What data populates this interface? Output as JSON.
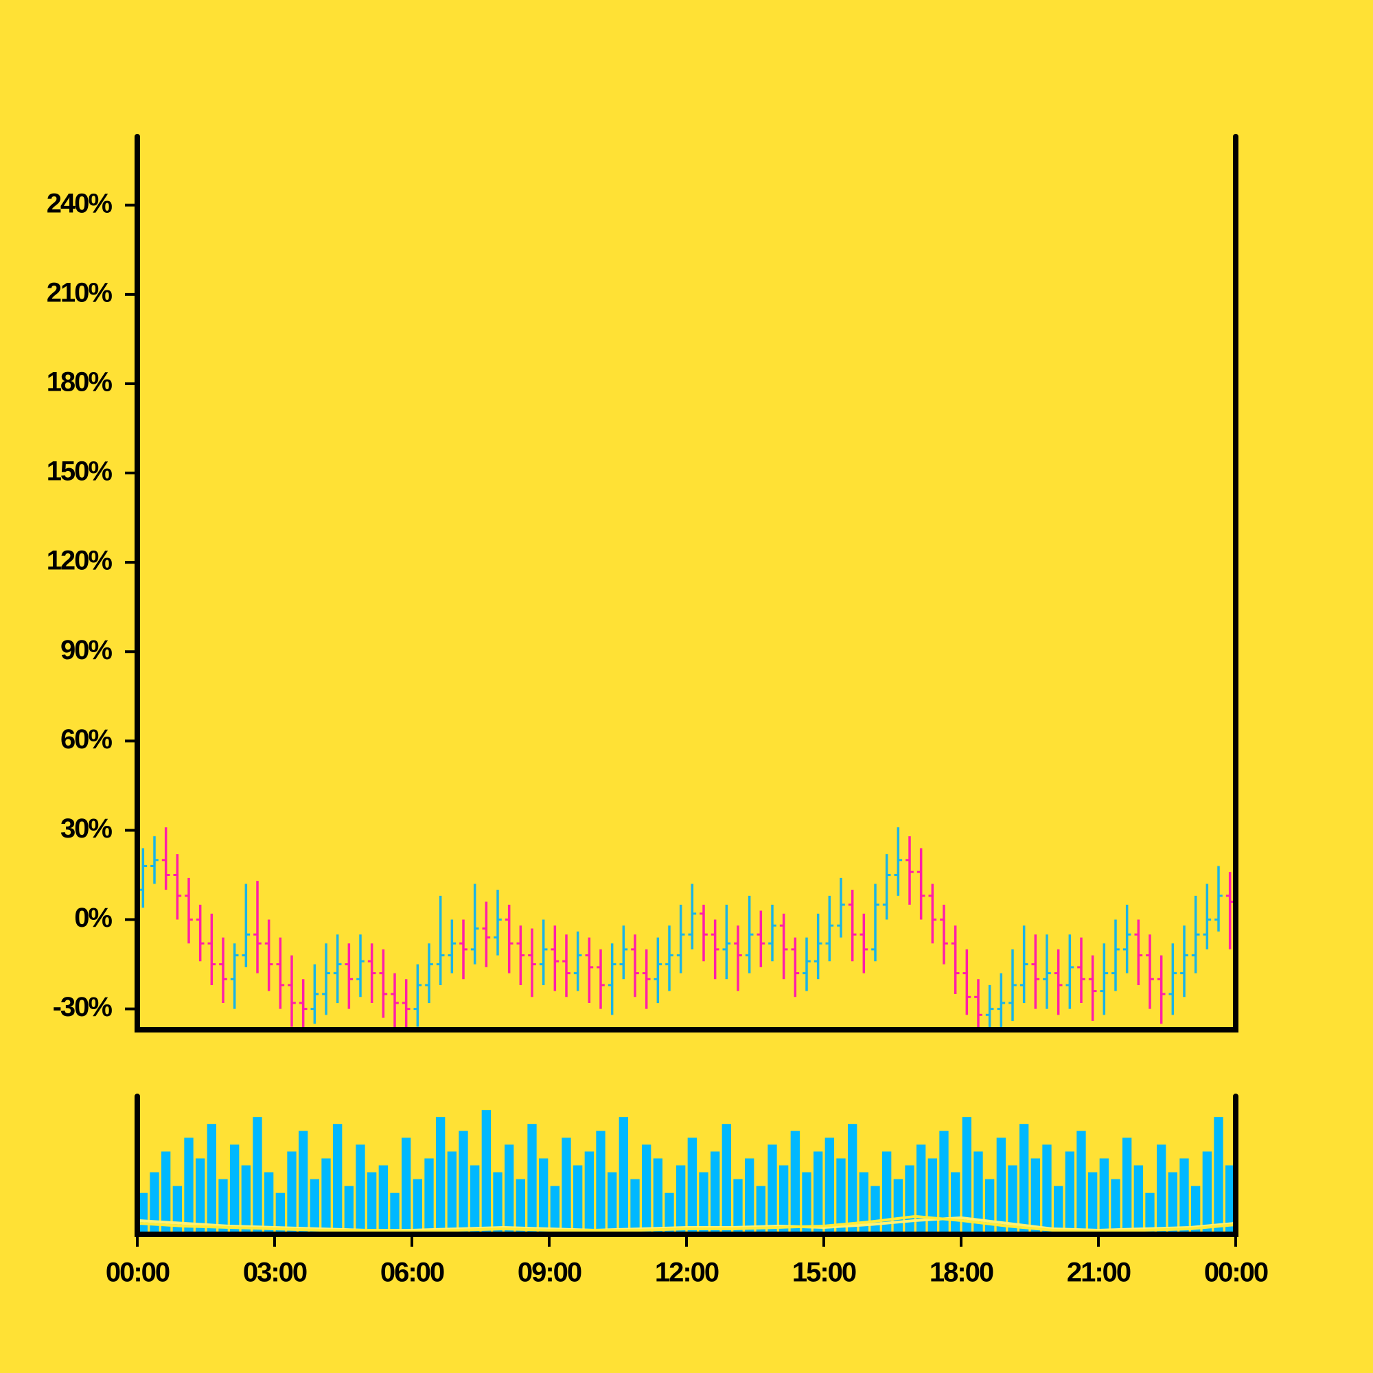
{
  "chart_data": {
    "type": "ohlc",
    "x": [
      0.125,
      0.375,
      0.625,
      0.875,
      1.125,
      1.375,
      1.625,
      1.875,
      2.125,
      2.375,
      2.625,
      2.875,
      3.125,
      3.375,
      3.625,
      3.875,
      4.125,
      4.375,
      4.625,
      4.875,
      5.125,
      5.375,
      5.625,
      5.875,
      6.125,
      6.375,
      6.625,
      6.875,
      7.125,
      7.375,
      7.625,
      7.875,
      8.125,
      8.375,
      8.625,
      8.875,
      9.125,
      9.375,
      9.625,
      9.875,
      10.125,
      10.375,
      10.625,
      10.875,
      11.125,
      11.375,
      11.625,
      11.875,
      12.125,
      12.375,
      12.625,
      12.875,
      13.125,
      13.375,
      13.625,
      13.875,
      14.125,
      14.375,
      14.625,
      14.875,
      15.125,
      15.375,
      15.625,
      15.875,
      16.125,
      16.375,
      16.625,
      16.875,
      17.125,
      17.375,
      17.625,
      17.875,
      18.125,
      18.375,
      18.625,
      18.875,
      19.125,
      19.375,
      19.625,
      19.875,
      20.125,
      20.375,
      20.625,
      20.875,
      21.125,
      21.375,
      21.625,
      21.875,
      22.125,
      22.375,
      22.625,
      22.875,
      23.125,
      23.375,
      23.625,
      23.875
    ],
    "open": [
      10,
      18,
      20,
      15,
      8,
      0,
      -8,
      -15,
      -20,
      -12,
      -5,
      -8,
      -15,
      -22,
      -28,
      -30,
      -25,
      -18,
      -15,
      -20,
      -14,
      -18,
      -25,
      -28,
      -30,
      -22,
      -15,
      -12,
      -8,
      -10,
      -3,
      -6,
      0,
      -8,
      -12,
      -15,
      -10,
      -14,
      -18,
      -12,
      -16,
      -22,
      -15,
      -10,
      -18,
      -20,
      -15,
      -12,
      -5,
      2,
      -5,
      -10,
      -8,
      -12,
      -5,
      -8,
      -2,
      -10,
      -18,
      -14,
      -8,
      -2,
      5,
      -5,
      -10,
      5,
      15,
      20,
      16,
      8,
      0,
      -8,
      -18,
      -26,
      -32,
      -30,
      -28,
      -22,
      -15,
      -20,
      -18,
      -22,
      -16,
      -20,
      -24,
      -18,
      -10,
      -5,
      -12,
      -20,
      -25,
      -18,
      -12,
      -5,
      0,
      8
    ],
    "high": [
      24,
      28,
      31,
      22,
      14,
      5,
      2,
      -6,
      -8,
      12,
      13,
      0,
      -6,
      -12,
      -20,
      -15,
      -8,
      -5,
      -8,
      -5,
      -8,
      -10,
      -18,
      -20,
      -15,
      -8,
      8,
      0,
      0,
      12,
      6,
      10,
      5,
      -2,
      -3,
      0,
      -2,
      -5,
      -4,
      -6,
      -10,
      -8,
      -2,
      -5,
      -10,
      -6,
      -2,
      5,
      12,
      5,
      0,
      5,
      -2,
      8,
      3,
      5,
      2,
      -6,
      -6,
      2,
      8,
      14,
      10,
      2,
      12,
      22,
      31,
      28,
      24,
      12,
      5,
      -2,
      -10,
      -20,
      -22,
      -18,
      -10,
      -2,
      -5,
      -5,
      -10,
      -5,
      -6,
      -12,
      -8,
      0,
      5,
      0,
      -5,
      -12,
      -8,
      -2,
      8,
      12,
      18,
      16
    ],
    "low": [
      4,
      12,
      10,
      0,
      -8,
      -14,
      -22,
      -28,
      -30,
      -16,
      -18,
      -24,
      -30,
      -36,
      -38,
      -35,
      -32,
      -28,
      -30,
      -26,
      -28,
      -33,
      -38,
      -40,
      -36,
      -28,
      -22,
      -18,
      -20,
      -15,
      -16,
      -12,
      -18,
      -22,
      -26,
      -22,
      -24,
      -26,
      -24,
      -28,
      -30,
      -32,
      -20,
      -26,
      -30,
      -28,
      -24,
      -18,
      -10,
      -14,
      -20,
      -20,
      -24,
      -18,
      -16,
      -14,
      -20,
      -26,
      -24,
      -20,
      -14,
      -6,
      -14,
      -18,
      -14,
      0,
      8,
      5,
      0,
      -8,
      -15,
      -25,
      -32,
      -38,
      -40,
      -38,
      -34,
      -28,
      -30,
      -30,
      -32,
      -30,
      -28,
      -34,
      -32,
      -24,
      -18,
      -22,
      -30,
      -35,
      -32,
      -26,
      -18,
      -10,
      -4,
      -10
    ],
    "close": [
      18,
      20,
      15,
      8,
      0,
      -8,
      -15,
      -20,
      -12,
      -5,
      -8,
      -15,
      -22,
      -28,
      -30,
      -25,
      -18,
      -15,
      -20,
      -14,
      -18,
      -25,
      -28,
      -30,
      -22,
      -15,
      -12,
      -8,
      -10,
      -3,
      -6,
      0,
      -8,
      -12,
      -15,
      -10,
      -14,
      -18,
      -12,
      -16,
      -22,
      -15,
      -10,
      -18,
      -20,
      -15,
      -12,
      -5,
      2,
      -5,
      -10,
      -8,
      -12,
      -5,
      -8,
      -2,
      -10,
      -18,
      -14,
      -8,
      -2,
      5,
      -5,
      -10,
      5,
      15,
      20,
      16,
      8,
      0,
      -8,
      -18,
      -26,
      -32,
      -30,
      -28,
      -22,
      -15,
      -20,
      -18,
      -22,
      -16,
      -20,
      -24,
      -18,
      -10,
      -5,
      -12,
      -20,
      -25,
      -18,
      -12,
      -5,
      0,
      8,
      6
    ],
    "volume": [
      30,
      45,
      60,
      35,
      70,
      55,
      80,
      40,
      65,
      50,
      85,
      45,
      30,
      60,
      75,
      40,
      55,
      80,
      35,
      65,
      45,
      50,
      30,
      70,
      40,
      55,
      85,
      60,
      75,
      50,
      90,
      45,
      65,
      40,
      80,
      55,
      35,
      70,
      50,
      60,
      75,
      45,
      85,
      40,
      65,
      55,
      30,
      50,
      70,
      45,
      60,
      80,
      40,
      55,
      35,
      65,
      50,
      75,
      45,
      60,
      70,
      55,
      80,
      45,
      35,
      60,
      40,
      50,
      65,
      55,
      75,
      45,
      85,
      60,
      40,
      70,
      50,
      80,
      55,
      65,
      35,
      60,
      75,
      45,
      55,
      40,
      70,
      50,
      30,
      65,
      45,
      55,
      35,
      60,
      85,
      50
    ],
    "volume_line_x": [
      0,
      1,
      2,
      3,
      4,
      5,
      6,
      7,
      8,
      9,
      10,
      11,
      12,
      13,
      14,
      15,
      16,
      17,
      18,
      19,
      20,
      21,
      22,
      23,
      24
    ],
    "volume_lines": [
      {
        "color": "#fff176",
        "values": [
          10,
          8,
          6,
          5,
          4,
          3,
          3,
          4,
          5,
          4,
          3,
          4,
          5,
          5,
          6,
          5,
          7,
          10,
          12,
          8,
          4,
          3,
          4,
          5,
          8
        ]
      },
      {
        "color": "#ffeb3b",
        "values": [
          8,
          6,
          5,
          4,
          3,
          3,
          2,
          3,
          4,
          3,
          3,
          3,
          4,
          4,
          5,
          6,
          9,
          13,
          10,
          6,
          3,
          2,
          3,
          4,
          7
        ]
      }
    ],
    "up_color": "#1ab4e6",
    "down_color": "#ff1fa8",
    "volume_color": "#00b8ff",
    "xlim": [
      0,
      24
    ],
    "ylim": [
      -37,
      263
    ],
    "volume_ylim": [
      0,
      100
    ],
    "yticks": [
      {
        "value": -30,
        "label": "-30%"
      },
      {
        "value": 0,
        "label": "0%"
      },
      {
        "value": 30,
        "label": "30%"
      },
      {
        "value": 60,
        "label": "60%"
      },
      {
        "value": 90,
        "label": "90%"
      },
      {
        "value": 120,
        "label": "120%"
      },
      {
        "value": 150,
        "label": "150%"
      },
      {
        "value": 180,
        "label": "180%"
      },
      {
        "value": 210,
        "label": "210%"
      },
      {
        "value": 240,
        "label": "240%"
      }
    ],
    "xticks": [
      {
        "value": 0,
        "label": "00:00"
      },
      {
        "value": 3,
        "label": "03:00"
      },
      {
        "value": 6,
        "label": "06:00"
      },
      {
        "value": 9,
        "label": "09:00"
      },
      {
        "value": 12,
        "label": "12:00"
      },
      {
        "value": 15,
        "label": "15:00"
      },
      {
        "value": 18,
        "label": "18:00"
      },
      {
        "value": 21,
        "label": "21:00"
      },
      {
        "value": 24,
        "label": "00:00"
      }
    ]
  }
}
